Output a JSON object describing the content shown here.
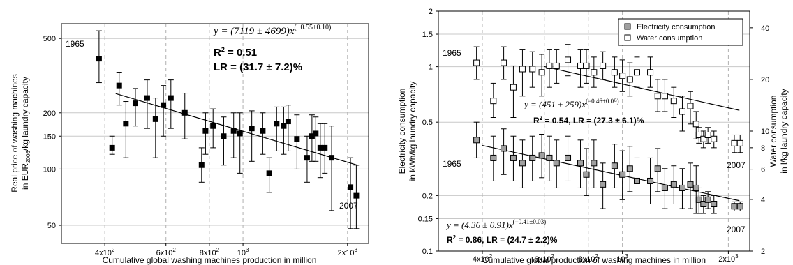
{
  "chart_data": [
    {
      "type": "scatter",
      "scale": "log-log",
      "grid": "major gridlines (solid horizontal, dashed vertical)",
      "xlabel": "Cumulative global washing machines production in million",
      "ylabel_lines": [
        "Real price of washing machines",
        "in EUR",
        "2006",
        "/kg laundry capacity"
      ],
      "xlim": [
        300,
        2300
      ],
      "ylim": [
        40,
        600
      ],
      "x_ticks": [
        {
          "value": 400,
          "base": "4x10",
          "exp": "2"
        },
        {
          "value": 600,
          "base": "6x10",
          "exp": "2"
        },
        {
          "value": 800,
          "base": "8x10",
          "exp": "2"
        },
        {
          "value": 1000,
          "base": "10",
          "exp": "3"
        },
        {
          "value": 2000,
          "base": "2x10",
          "exp": "3"
        }
      ],
      "y_ticks": [
        {
          "value": 50,
          "label": "50"
        },
        {
          "value": 100,
          "label": "100"
        },
        {
          "value": 150,
          "label": "150"
        },
        {
          "value": 200,
          "label": "200"
        },
        {
          "value": 500,
          "label": "500"
        }
      ],
      "series": [
        {
          "marker": "filled-square",
          "points": [
            {
              "x": 385,
              "y": 390,
              "lo": 290,
              "hi": 550
            },
            {
              "x": 420,
              "y": 130,
              "lo": 120,
              "hi": 150
            },
            {
              "x": 440,
              "y": 280,
              "lo": 220,
              "hi": 330
            },
            {
              "x": 460,
              "y": 175,
              "lo": 115,
              "hi": 230
            },
            {
              "x": 490,
              "y": 225,
              "lo": 170,
              "hi": 270
            },
            {
              "x": 530,
              "y": 240,
              "lo": 165,
              "hi": 300
            },
            {
              "x": 560,
              "y": 185,
              "lo": 115,
              "hi": 240
            },
            {
              "x": 590,
              "y": 220,
              "lo": 150,
              "hi": 280
            },
            {
              "x": 620,
              "y": 240,
              "lo": 165,
              "hi": 300
            },
            {
              "x": 680,
              "y": 200,
              "lo": 145,
              "hi": 255
            },
            {
              "x": 760,
              "y": 105,
              "lo": 85,
              "hi": 130
            },
            {
              "x": 780,
              "y": 160,
              "lo": 120,
              "hi": 200
            },
            {
              "x": 820,
              "y": 170,
              "lo": 130,
              "hi": 210
            },
            {
              "x": 880,
              "y": 150,
              "lo": 105,
              "hi": 190
            },
            {
              "x": 940,
              "y": 160,
              "lo": 115,
              "hi": 200
            },
            {
              "x": 980,
              "y": 155,
              "lo": 95,
              "hi": 200
            },
            {
              "x": 1060,
              "y": 165,
              "lo": 110,
              "hi": 205
            },
            {
              "x": 1140,
              "y": 160,
              "lo": 120,
              "hi": 200
            },
            {
              "x": 1190,
              "y": 95,
              "lo": 75,
              "hi": 115
            },
            {
              "x": 1250,
              "y": 175,
              "lo": 125,
              "hi": 215
            },
            {
              "x": 1310,
              "y": 170,
              "lo": 120,
              "hi": 215
            },
            {
              "x": 1350,
              "y": 180,
              "lo": 125,
              "hi": 220
            },
            {
              "x": 1430,
              "y": 145,
              "lo": 100,
              "hi": 195
            },
            {
              "x": 1530,
              "y": 115,
              "lo": 85,
              "hi": 150
            },
            {
              "x": 1580,
              "y": 150,
              "lo": 110,
              "hi": 195
            },
            {
              "x": 1620,
              "y": 155,
              "lo": 110,
              "hi": 190
            },
            {
              "x": 1670,
              "y": 130,
              "lo": 90,
              "hi": 175
            },
            {
              "x": 1720,
              "y": 130,
              "lo": 95,
              "hi": 175
            },
            {
              "x": 1800,
              "y": 115,
              "lo": 60,
              "hi": 170
            },
            {
              "x": 2040,
              "y": 80,
              "lo": 48,
              "hi": 115
            },
            {
              "x": 2120,
              "y": 72,
              "lo": 48,
              "hi": 105
            }
          ],
          "fit": {
            "a": 7119,
            "b": -0.55,
            "x_range": [
              430,
              2150
            ]
          }
        }
      ],
      "annotations": {
        "year_start": "1965",
        "year_end": "2007",
        "equation": {
          "prefix": "y = (7119 ± 4699)x",
          "exponent": "(−0.55±0.10)"
        },
        "r2": {
          "label": "R",
          "sup": "2",
          "value": " = 0.51"
        },
        "lr": "LR = (31.7 ± 7.2)%"
      }
    },
    {
      "type": "scatter",
      "scale": "log-log",
      "grid": "major gridlines (solid horizontal, dashed vertical)",
      "legend": "top-right",
      "xlabel": "Cumulative global production of washing machines in million",
      "ylabel_left_lines": [
        "Electricity consumption",
        "in kWh/kg laundry capacity"
      ],
      "ylabel_right_lines": [
        "Water consumption",
        "in l/kg laundry capacity"
      ],
      "xlim": [
        300,
        2300
      ],
      "ylim_left": [
        0.1,
        2
      ],
      "ylim_right": [
        2,
        50
      ],
      "x_ticks": [
        {
          "value": 400,
          "base": "4x10",
          "exp": "2"
        },
        {
          "value": 600,
          "base": "6x10",
          "exp": "2"
        },
        {
          "value": 800,
          "base": "8x10",
          "exp": "2"
        },
        {
          "value": 1000,
          "base": "10",
          "exp": "3"
        },
        {
          "value": 2000,
          "base": "2x10",
          "exp": "3"
        }
      ],
      "y_ticks_left": [
        {
          "value": 0.1,
          "label": "0.1"
        },
        {
          "value": 0.15,
          "label": "0.15"
        },
        {
          "value": 0.2,
          "label": "0.2"
        },
        {
          "value": 0.5,
          "label": "0.5"
        },
        {
          "value": 1,
          "label": "1"
        },
        {
          "value": 1.5,
          "label": "1.5"
        },
        {
          "value": 2,
          "label": "2"
        }
      ],
      "y_ticks_right": [
        {
          "value": 2,
          "label": "2"
        },
        {
          "value": 4,
          "label": "4"
        },
        {
          "value": 6,
          "label": "6"
        },
        {
          "value": 8,
          "label": "8"
        },
        {
          "value": 10,
          "label": "10"
        },
        {
          "value": 20,
          "label": "20"
        },
        {
          "value": 40,
          "label": "40"
        }
      ],
      "series": [
        {
          "name": "Electricity consumption",
          "marker": "gray-square",
          "axis": "left",
          "points": [
            {
              "x": 385,
              "y": 0.4,
              "lo": 0.32,
              "hi": 0.5
            },
            {
              "x": 430,
              "y": 0.32,
              "lo": 0.24,
              "hi": 0.42
            },
            {
              "x": 460,
              "y": 0.36,
              "lo": 0.26,
              "hi": 0.46
            },
            {
              "x": 490,
              "y": 0.32,
              "lo": 0.24,
              "hi": 0.42
            },
            {
              "x": 520,
              "y": 0.3,
              "lo": 0.22,
              "hi": 0.4
            },
            {
              "x": 555,
              "y": 0.32,
              "lo": 0.24,
              "hi": 0.42
            },
            {
              "x": 590,
              "y": 0.33,
              "lo": 0.25,
              "hi": 0.43
            },
            {
              "x": 620,
              "y": 0.32,
              "lo": 0.24,
              "hi": 0.42
            },
            {
              "x": 650,
              "y": 0.3,
              "lo": 0.22,
              "hi": 0.4
            },
            {
              "x": 700,
              "y": 0.32,
              "lo": 0.24,
              "hi": 0.42
            },
            {
              "x": 760,
              "y": 0.3,
              "lo": 0.22,
              "hi": 0.4
            },
            {
              "x": 790,
              "y": 0.26,
              "lo": 0.2,
              "hi": 0.36
            },
            {
              "x": 830,
              "y": 0.3,
              "lo": 0.22,
              "hi": 0.4
            },
            {
              "x": 880,
              "y": 0.23,
              "lo": 0.17,
              "hi": 0.3
            },
            {
              "x": 950,
              "y": 0.29,
              "lo": 0.22,
              "hi": 0.38
            },
            {
              "x": 1000,
              "y": 0.26,
              "lo": 0.19,
              "hi": 0.35
            },
            {
              "x": 1050,
              "y": 0.28,
              "lo": 0.21,
              "hi": 0.37
            },
            {
              "x": 1100,
              "y": 0.24,
              "lo": 0.18,
              "hi": 0.32
            },
            {
              "x": 1200,
              "y": 0.24,
              "lo": 0.18,
              "hi": 0.32
            },
            {
              "x": 1260,
              "y": 0.28,
              "lo": 0.21,
              "hi": 0.36
            },
            {
              "x": 1320,
              "y": 0.22,
              "lo": 0.17,
              "hi": 0.28
            },
            {
              "x": 1400,
              "y": 0.23,
              "lo": 0.18,
              "hi": 0.29
            },
            {
              "x": 1480,
              "y": 0.22,
              "lo": 0.17,
              "hi": 0.28
            },
            {
              "x": 1560,
              "y": 0.23,
              "lo": 0.17,
              "hi": 0.3
            },
            {
              "x": 1620,
              "y": 0.22,
              "lo": 0.16,
              "hi": 0.29
            },
            {
              "x": 1650,
              "y": 0.19,
              "lo": 0.16,
              "hi": 0.22
            },
            {
              "x": 1700,
              "y": 0.18,
              "lo": 0.16,
              "hi": 0.2
            },
            {
              "x": 1750,
              "y": 0.19,
              "lo": 0.17,
              "hi": 0.21
            },
            {
              "x": 1820,
              "y": 0.18,
              "lo": 0.16,
              "hi": 0.2
            },
            {
              "x": 2080,
              "y": 0.175,
              "lo": 0.165,
              "hi": 0.185
            },
            {
              "x": 2160,
              "y": 0.175,
              "lo": 0.165,
              "hi": 0.185
            }
          ],
          "fit": {
            "a": 4.36,
            "b": -0.41,
            "x_range": [
              400,
              2150
            ]
          }
        },
        {
          "name": "Water consumption",
          "marker": "open-square",
          "axis": "right",
          "points": [
            {
              "x": 385,
              "y": 25,
              "lo": 20,
              "hi": 31
            },
            {
              "x": 430,
              "y": 15,
              "lo": 12,
              "hi": 19
            },
            {
              "x": 460,
              "y": 25,
              "lo": 20,
              "hi": 31
            },
            {
              "x": 490,
              "y": 18,
              "lo": 12,
              "hi": 24
            },
            {
              "x": 520,
              "y": 23,
              "lo": 16,
              "hi": 30
            },
            {
              "x": 555,
              "y": 23,
              "lo": 18,
              "hi": 29
            },
            {
              "x": 590,
              "y": 22,
              "lo": 16,
              "hi": 28
            },
            {
              "x": 620,
              "y": 24,
              "lo": 18,
              "hi": 30
            },
            {
              "x": 650,
              "y": 24,
              "lo": 19,
              "hi": 30
            },
            {
              "x": 700,
              "y": 26,
              "lo": 21,
              "hi": 32
            },
            {
              "x": 760,
              "y": 24,
              "lo": 18,
              "hi": 30
            },
            {
              "x": 790,
              "y": 24,
              "lo": 19,
              "hi": 30
            },
            {
              "x": 830,
              "y": 22,
              "lo": 18,
              "hi": 27
            },
            {
              "x": 880,
              "y": 24,
              "lo": 20,
              "hi": 29
            },
            {
              "x": 950,
              "y": 22,
              "lo": 18,
              "hi": 27
            },
            {
              "x": 1000,
              "y": 21,
              "lo": 17,
              "hi": 26
            },
            {
              "x": 1050,
              "y": 20,
              "lo": 16,
              "hi": 25
            },
            {
              "x": 1100,
              "y": 22,
              "lo": 18,
              "hi": 27
            },
            {
              "x": 1200,
              "y": 22,
              "lo": 18,
              "hi": 27
            },
            {
              "x": 1260,
              "y": 16,
              "lo": 13,
              "hi": 20
            },
            {
              "x": 1320,
              "y": 16,
              "lo": 13,
              "hi": 20
            },
            {
              "x": 1400,
              "y": 15,
              "lo": 12,
              "hi": 18
            },
            {
              "x": 1480,
              "y": 13,
              "lo": 10,
              "hi": 16
            },
            {
              "x": 1560,
              "y": 14,
              "lo": 11,
              "hi": 17
            },
            {
              "x": 1620,
              "y": 11,
              "lo": 9,
              "hi": 13
            },
            {
              "x": 1650,
              "y": 9.5,
              "lo": 8.5,
              "hi": 10.5
            },
            {
              "x": 1700,
              "y": 9,
              "lo": 8,
              "hi": 10
            },
            {
              "x": 1750,
              "y": 9.5,
              "lo": 8.5,
              "hi": 10.5
            },
            {
              "x": 1820,
              "y": 9,
              "lo": 8,
              "hi": 10
            },
            {
              "x": 2080,
              "y": 8.5,
              "lo": 7.5,
              "hi": 9.5
            },
            {
              "x": 2160,
              "y": 8.5,
              "lo": 7.5,
              "hi": 9.5
            }
          ],
          "fit_left_units": {
            "a": 451,
            "b": -0.46,
            "x_range": [
              600,
              2150
            ],
            "scale_to_left": 0.0
          }
        }
      ],
      "annotations": {
        "water_year_start": "1965",
        "water_year_end": "2007",
        "elec_year_start": "1965",
        "elec_year_end": "2007",
        "water_equation": {
          "prefix": "y = (451 ± 259)x",
          "exponent": "(−0.46±0.09)"
        },
        "water_stats": {
          "label": "R",
          "sup": "2",
          "value": " = 0.54, LR = (27.3 ± 6.1)%"
        },
        "elec_equation": {
          "prefix": "y = (4.36 ± 0.91)x",
          "exponent": "(−0.41±0.03)"
        },
        "elec_stats": {
          "label": "R",
          "sup": "2",
          "value": " = 0.86, LR = (24.7 ± 2.2)%"
        }
      }
    }
  ]
}
